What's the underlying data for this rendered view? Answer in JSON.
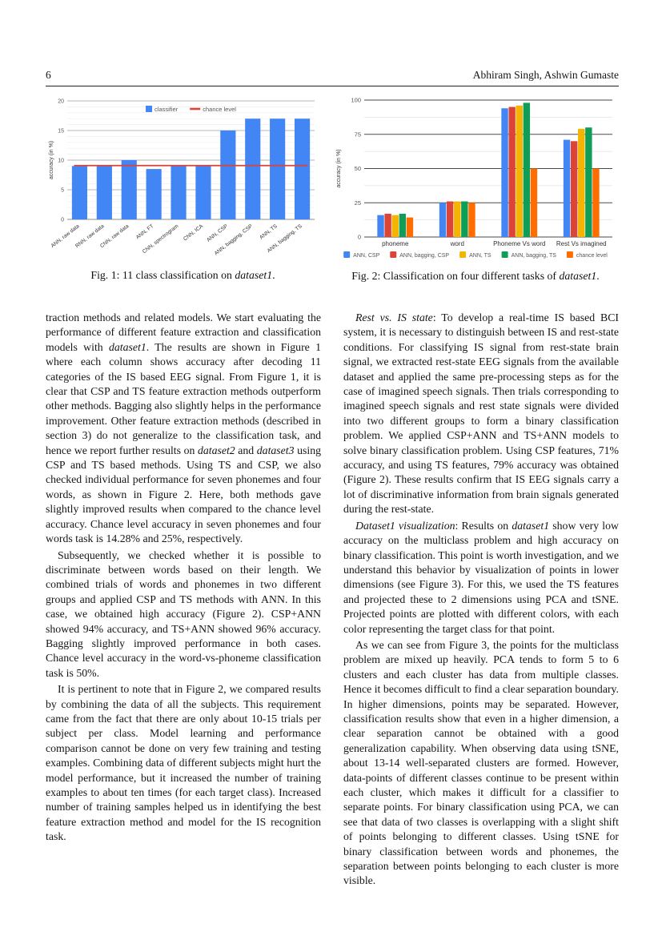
{
  "page": {
    "number": "6",
    "authors": "Abhiram Singh, Ashwin Gumaste"
  },
  "figures": [
    {
      "caption": [
        {
          "t": "Fig. 1: 11 class classification on "
        },
        {
          "t": "dataset1",
          "i": true
        },
        {
          "t": "."
        }
      ]
    },
    {
      "caption": [
        {
          "t": "Fig. 2: Classification on four different tasks of "
        },
        {
          "t": "dataset1",
          "i": true
        },
        {
          "t": "."
        }
      ]
    }
  ],
  "chart_data": [
    {
      "type": "bar",
      "title": "11 class classification on dataset1",
      "categories": [
        "ANN, raw data",
        "RNN, raw data",
        "CNN, raw data",
        "ANN, FT",
        "CNN, spectrogram",
        "CNN, ICA",
        "ANN, CSP",
        "ANN, bagging, CSP",
        "ANN, TS",
        "ANN, bagging, TS"
      ],
      "values": [
        9,
        9,
        10,
        8.5,
        9,
        9,
        15,
        17,
        17,
        17
      ],
      "chance_level": 9.09,
      "xlabel": "",
      "ylabel": "accuracy (in %)",
      "ylim": [
        0,
        20
      ],
      "yticks": [
        0,
        5,
        10,
        15,
        20
      ],
      "minor_step": 1,
      "grid": true,
      "legend_position": "top-inside",
      "bar_color": "#4285f4",
      "chance_color": "#db4437",
      "legend": [
        {
          "label": "classifier",
          "swatch": "square",
          "color": "#4285f4"
        },
        {
          "label": "chance level",
          "swatch": "line",
          "color": "#db4437"
        }
      ]
    },
    {
      "type": "bar",
      "title": "Classification on four different tasks of dataset1",
      "categories": [
        "phoneme",
        "word",
        "Phoneme Vs word",
        "Rest Vs imagined"
      ],
      "series": [
        {
          "name": "ANN, CSP",
          "color": "#4285f4",
          "values": [
            16,
            25,
            94,
            71
          ]
        },
        {
          "name": "ANN, bagging, CSP",
          "color": "#db4437",
          "values": [
            17,
            26,
            95,
            70
          ]
        },
        {
          "name": "ANN, TS",
          "color": "#f4b400",
          "values": [
            16,
            26,
            96,
            79
          ]
        },
        {
          "name": "ANN, bagging, TS",
          "color": "#0f9d58",
          "values": [
            17,
            26,
            98,
            80
          ]
        },
        {
          "name": "chance level",
          "color": "#ff6d00",
          "values": [
            14.28,
            25,
            50,
            50
          ]
        }
      ],
      "xlabel": "",
      "ylabel": "accuracy (in %)",
      "ylim": [
        0,
        100
      ],
      "yticks": [
        0,
        25,
        50,
        75,
        100
      ],
      "minor_step": 12.5,
      "grid": true,
      "legend_position": "bottom"
    }
  ],
  "columns": {
    "left": [
      {
        "indent": false,
        "segments": [
          {
            "t": "traction methods and related models. We start evaluating the performance of different feature extraction and classification models with "
          },
          {
            "t": "dataset1",
            "i": true
          },
          {
            "t": ". The results are shown in Figure 1 where each column shows accuracy after decoding 11 categories of the IS based EEG signal. From Figure 1, it is clear that CSP and TS feature extraction methods outperform other methods. Bagging also slightly helps in the performance improvement. Other feature extraction methods (described in section 3) do not generalize to the classification task, and hence we report further results on "
          },
          {
            "t": "dataset2",
            "i": true
          },
          {
            "t": " and "
          },
          {
            "t": "dataset3",
            "i": true
          },
          {
            "t": " using CSP and TS based methods. Using TS and CSP, we also checked individual performance for seven phonemes and four words, as shown in Figure 2. Here, both methods gave slightly improved results when compared to the chance level accuracy. Chance level accuracy in seven phonemes and four words task is 14.28% and 25%, respectively."
          }
        ]
      },
      {
        "indent": true,
        "segments": [
          {
            "t": "Subsequently, we checked whether it is possible to discriminate between words based on their length. We combined trials of words and phonemes in two different groups and applied CSP and TS methods with ANN. In this case, we obtained high accuracy (Figure 2). CSP+ANN showed 94% accuracy, and TS+ANN showed 96% accuracy. Bagging slightly improved performance in both cases. Chance level accuracy in the word-vs-phoneme classification task is 50%."
          }
        ]
      },
      {
        "indent": true,
        "segments": [
          {
            "t": "It is pertinent to note that in Figure 2, we compared results by combining the data of all the subjects. This requirement came from the fact that there are only about 10-15 trials per subject per class. Model learning and performance comparison cannot be done on very few training and testing examples. Combining data of different subjects might hurt the model performance, but it increased the number of training examples to about ten times (for each target class). Increased number of training samples helped us in identifying the best feature extraction method and model for the IS recognition task."
          }
        ]
      }
    ],
    "right": [
      {
        "indent": true,
        "segments": [
          {
            "t": "Rest vs. IS state",
            "i": true
          },
          {
            "t": ": To develop a real-time IS based BCI system, it is necessary to distinguish between IS and rest-state conditions. For classifying IS signal from rest-state brain signal, we extracted rest-state EEG signals from the available dataset and applied the same pre-processing steps as for the case of imagined speech signals. Then trials corresponding to imagined speech signals and rest state signals were divided into two different groups to form a binary classification problem. We applied CSP+ANN and TS+ANN models to solve binary classification problem. Using CSP features, 71% accuracy, and using TS features, 79% accuracy was obtained (Figure 2). These results confirm that IS EEG signals carry a lot of discriminative information from brain signals generated during the rest-state."
          }
        ]
      },
      {
        "indent": true,
        "segments": [
          {
            "t": "Dataset1 visualization",
            "i": true
          },
          {
            "t": ": Results on "
          },
          {
            "t": "dataset1",
            "i": true
          },
          {
            "t": " show very low accuracy on the multiclass problem and high accuracy on binary classification. This point is worth investigation, and we understand this behavior by visualization of points in lower dimensions (see Figure 3). For this, we used the TS features and projected these to 2 dimensions using PCA and tSNE. Projected points are plotted with different colors, with each color representing the target class for that point."
          }
        ]
      },
      {
        "indent": true,
        "segments": [
          {
            "t": "As we can see from Figure 3, the points for the multiclass problem are mixed up heavily. PCA tends to form 5 to 6 clusters and each cluster has data from multiple classes. Hence it becomes difficult to find a clear separation boundary. In higher dimensions, points may be separated. However, classification results show that even in a higher dimension, a clear separation cannot be obtained with a good generalization capability. When observing data using tSNE, about 13-14 well-separated clusters are formed. However, data-points of different classes continue to be present within each cluster, which makes it difficult for a classifier to separate points. For binary classification using PCA, we can see that data of two classes is overlapping with a slight shift of points belonging to different classes. Using tSNE for binary classification between words and phonemes, the separation between points belonging to each cluster is more visible."
          }
        ]
      }
    ]
  }
}
